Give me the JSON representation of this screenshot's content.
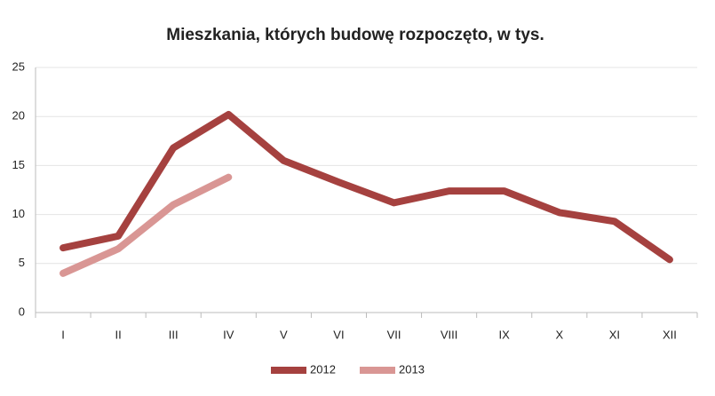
{
  "chart_data": {
    "type": "line",
    "title": "Mieszkania, których budowę rozpoczęto, w tys.",
    "categories": [
      "I",
      "II",
      "III",
      "IV",
      "V",
      "VI",
      "VII",
      "VIII",
      "IX",
      "X",
      "XI",
      "XII"
    ],
    "series": [
      {
        "name": "2012",
        "color": "#a5413f",
        "values": [
          6.6,
          7.8,
          16.8,
          20.2,
          15.5,
          13.3,
          11.2,
          12.4,
          12.4,
          10.2,
          9.3,
          5.4
        ]
      },
      {
        "name": "2013",
        "color": "#d99694",
        "values": [
          4.0,
          6.5,
          11.0,
          13.8,
          null,
          null,
          null,
          null,
          null,
          null,
          null,
          null
        ]
      }
    ],
    "ylim": [
      0,
      25
    ],
    "yticks": [
      0,
      5,
      10,
      15,
      20,
      25
    ],
    "grid": true,
    "legend": "bottom"
  }
}
